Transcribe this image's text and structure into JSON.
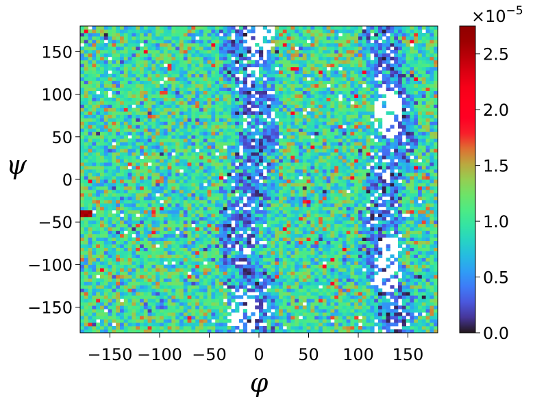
{
  "chart_data": {
    "type": "heatmap",
    "title": "",
    "xlabel": "φ",
    "ylabel": "ψ",
    "xlim": [
      -180,
      180
    ],
    "ylim": [
      -180,
      180
    ],
    "x_ticks": [
      -150,
      -100,
      -50,
      0,
      50,
      100,
      150
    ],
    "x_tick_labels": [
      "−150",
      "−100",
      "−50",
      "0",
      "50",
      "100",
      "150"
    ],
    "y_ticks": [
      -150,
      -100,
      -50,
      0,
      50,
      100,
      150
    ],
    "y_tick_labels": [
      "−150",
      "−100",
      "−50",
      "0",
      "50",
      "100",
      "150"
    ],
    "bins": 90,
    "colormap": "turbo",
    "colorbar": {
      "min": 0.0,
      "max": 2.75,
      "scale_label": "×10",
      "scale_exponent": "−5",
      "ticks": [
        0.0,
        0.5,
        1.0,
        1.5,
        2.0,
        2.5
      ],
      "tick_labels": [
        "0.0",
        "0.5",
        "1.0",
        "1.5",
        "2.0",
        "2.5"
      ]
    },
    "background_level": 1.0,
    "low_density_bands": [
      {
        "phi_center": -10,
        "phi_halfwidth": 20,
        "psi_range": [
          -180,
          180
        ],
        "level": 0.35
      },
      {
        "phi_center": 130,
        "phi_halfwidth": 18,
        "psi_range": [
          -180,
          180
        ],
        "level": 0.35
      }
    ],
    "empty_regions": [
      {
        "phi_center": 0,
        "psi_center": 170,
        "note": "white bins (zero counts)"
      },
      {
        "phi_center": -15,
        "psi_center": -160,
        "note": "white bins (zero counts)"
      },
      {
        "phi_center": 130,
        "psi_center": 80,
        "note": "white bins (zero counts)"
      },
      {
        "phi_center": 130,
        "psi_center": -100,
        "note": "white bins (zero counts)"
      }
    ],
    "hot_spot": {
      "phi": -175,
      "psi": -40,
      "level": 2.75
    }
  }
}
